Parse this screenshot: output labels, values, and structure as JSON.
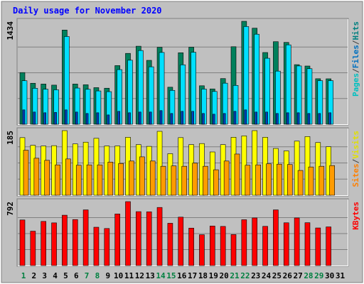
{
  "chart_data": {
    "type": "bar",
    "title": "Daily usage for November 2020",
    "categories": [
      "1",
      "2",
      "3",
      "4",
      "5",
      "6",
      "7",
      "8",
      "9",
      "10",
      "11",
      "12",
      "13",
      "14",
      "15",
      "16",
      "17",
      "18",
      "19",
      "20",
      "21",
      "22",
      "23",
      "24",
      "25",
      "26",
      "27",
      "28",
      "29",
      "30",
      "31"
    ],
    "weekend_days": [
      1,
      7,
      8,
      14,
      15,
      21,
      22,
      28,
      29
    ],
    "panels": [
      {
        "id": "hits_files_pages",
        "max_label": "1434",
        "ymax": 1434,
        "legend": [
          {
            "text": "Pages",
            "color": "#00c0c0"
          },
          {
            "text": "/",
            "color": "#404040"
          },
          {
            "text": "Files",
            "color": "#0070c0"
          },
          {
            "text": "/",
            "color": "#404040"
          },
          {
            "text": "Hits",
            "color": "#008080"
          }
        ],
        "series": [
          {
            "name": "Hits",
            "color": "#00805c",
            "values": [
              720,
              571,
              560,
              545,
              1312,
              560,
              550,
              510,
              502,
              817,
              987,
              1087,
              890,
              1072,
              516,
              996,
              1073,
              536,
              492,
              636,
              1080,
              1434,
              1338,
              999,
              1150,
              1140,
              830,
              811,
              634,
              633,
              0
            ]
          },
          {
            "name": "Files",
            "color": "#00e0ff",
            "values": [
              606,
              501,
              488,
              480,
              1222,
              504,
              487,
              464,
              454,
              761,
              892,
              1027,
              800,
              1000,
              472,
              828,
              1003,
              490,
              457,
              572,
              541,
              1361,
              1254,
              919,
              740,
              1106,
              812,
              774,
              607,
              607,
              0
            ]
          },
          {
            "name": "Pages",
            "color": "#0040c0",
            "values": [
              200,
              170,
              160,
              165,
              200,
              170,
              150,
              160,
              130,
              180,
              160,
              170,
              170,
              190,
              150,
              180,
              180,
              150,
              140,
              150,
              180,
              200,
              170,
              170,
              150,
              160,
              160,
              150,
              150,
              160,
              0
            ]
          }
        ]
      },
      {
        "id": "visits_sites",
        "max_label": "185",
        "ymax": 185,
        "legend": [
          {
            "text": "Sites",
            "color": "#ff8000"
          },
          {
            "text": "/",
            "color": "#404040"
          },
          {
            "text": "Visits",
            "color": "#e0e000"
          }
        ],
        "series": [
          {
            "name": "Visits",
            "color": "#ffff00",
            "values": [
              165,
              143,
              141,
              142,
              185,
              147,
              152,
              163,
              141,
              141,
              166,
              145,
              140,
              183,
              119,
              165,
              145,
              148,
              124,
              145,
              166,
              170,
              185,
              166,
              134,
              127,
              155,
              168,
              151,
              139,
              0
            ]
          },
          {
            "name": "Sites",
            "color": "#ff9c00",
            "values": [
              129,
              106,
              100,
              87,
              104,
              86,
              87,
              87,
              95,
              91,
              98,
              110,
              98,
              83,
              84,
              83,
              92,
              83,
              73,
              98,
              118,
              86,
              87,
              90,
              89,
              88,
              71,
              81,
              83,
              85,
              0
            ]
          }
        ]
      },
      {
        "id": "kbytes",
        "max_label": "792",
        "ymax": 792,
        "legend": [
          {
            "text": "KBytes",
            "color": "#ff0000"
          }
        ],
        "series": [
          {
            "name": "KBytes",
            "color": "#ff0000",
            "values": [
              565,
              426,
              547,
              529,
              624,
              570,
              690,
              475,
              459,
              639,
              792,
              668,
              666,
              720,
              524,
              600,
              464,
              382,
              490,
              485,
              384,
              568,
              590,
              486,
              690,
              530,
              590,
              531,
              466,
              479,
              0
            ]
          }
        ]
      }
    ]
  }
}
